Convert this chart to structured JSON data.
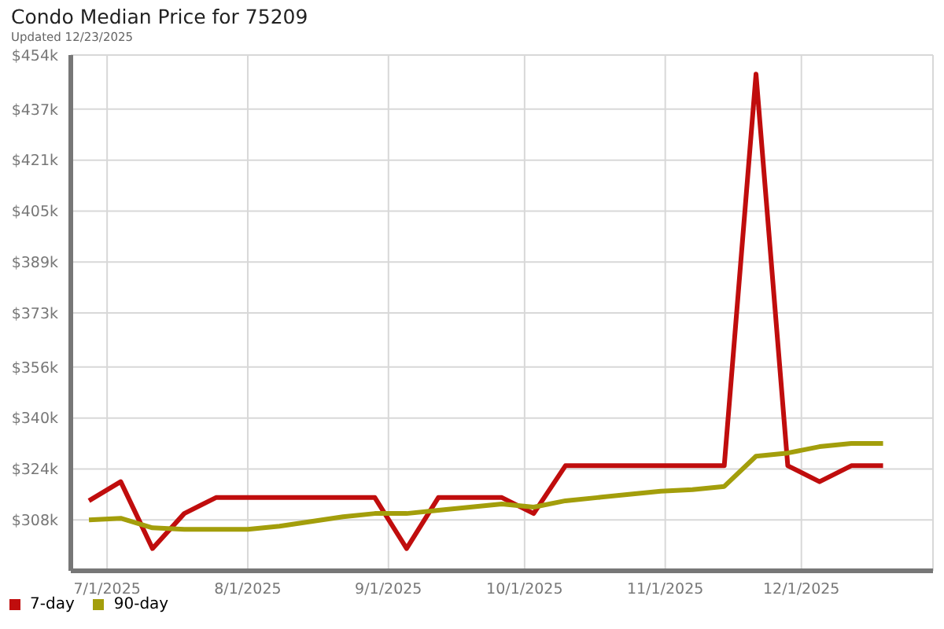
{
  "chart_data": {
    "type": "line",
    "title": "Condo Median Price for 75209",
    "subtitle": "Updated 12/23/2025",
    "x": [
      "2025-06-27",
      "2025-07-04",
      "2025-07-11",
      "2025-07-18",
      "2025-07-25",
      "2025-08-01",
      "2025-08-08",
      "2025-08-15",
      "2025-08-22",
      "2025-08-29",
      "2025-09-05",
      "2025-09-12",
      "2025-09-19",
      "2025-09-26",
      "2025-10-03",
      "2025-10-10",
      "2025-10-17",
      "2025-10-24",
      "2025-10-31",
      "2025-11-07",
      "2025-11-14",
      "2025-11-21",
      "2025-11-28",
      "2025-12-05",
      "2025-12-12",
      "2025-12-19"
    ],
    "series": [
      {
        "name": "7-day",
        "color": "#c00d0d",
        "values": [
          314,
          320,
          299,
          310,
          315,
          315,
          315,
          315,
          315,
          315,
          299,
          315,
          315,
          315,
          310,
          325,
          325,
          325,
          325,
          325,
          325,
          448,
          325,
          320,
          325,
          325
        ]
      },
      {
        "name": "90-day",
        "color": "#a39e0b",
        "values": [
          308,
          308.5,
          305.5,
          305,
          305,
          305,
          306,
          307.5,
          309,
          310,
          310,
          311,
          312,
          313,
          312,
          314,
          315,
          316,
          317,
          317.5,
          318.5,
          328,
          329,
          331,
          332,
          332
        ]
      }
    ],
    "xlim": [
      "2025-06-23",
      "2025-12-30"
    ],
    "xticks": [
      {
        "value": "2025-07-01",
        "label": "7/1/2025"
      },
      {
        "value": "2025-08-01",
        "label": "8/1/2025"
      },
      {
        "value": "2025-09-01",
        "label": "9/1/2025"
      },
      {
        "value": "2025-10-01",
        "label": "10/1/2025"
      },
      {
        "value": "2025-11-01",
        "label": "11/1/2025"
      },
      {
        "value": "2025-12-01",
        "label": "12/1/2025"
      }
    ],
    "ylim": [
      292,
      454
    ],
    "yticks": [
      {
        "value": 308,
        "label": "$308k"
      },
      {
        "value": 324,
        "label": "$324k"
      },
      {
        "value": 340,
        "label": "$340k"
      },
      {
        "value": 356,
        "label": "$356k"
      },
      {
        "value": 373,
        "label": "$373k"
      },
      {
        "value": 389,
        "label": "$389k"
      },
      {
        "value": 405,
        "label": "$405k"
      },
      {
        "value": 421,
        "label": "$421k"
      },
      {
        "value": 437,
        "label": "$437k"
      },
      {
        "value": 454,
        "label": "$454k"
      }
    ],
    "grid": true,
    "legend": "bottom left",
    "marker": "none",
    "line_style": "solid"
  }
}
